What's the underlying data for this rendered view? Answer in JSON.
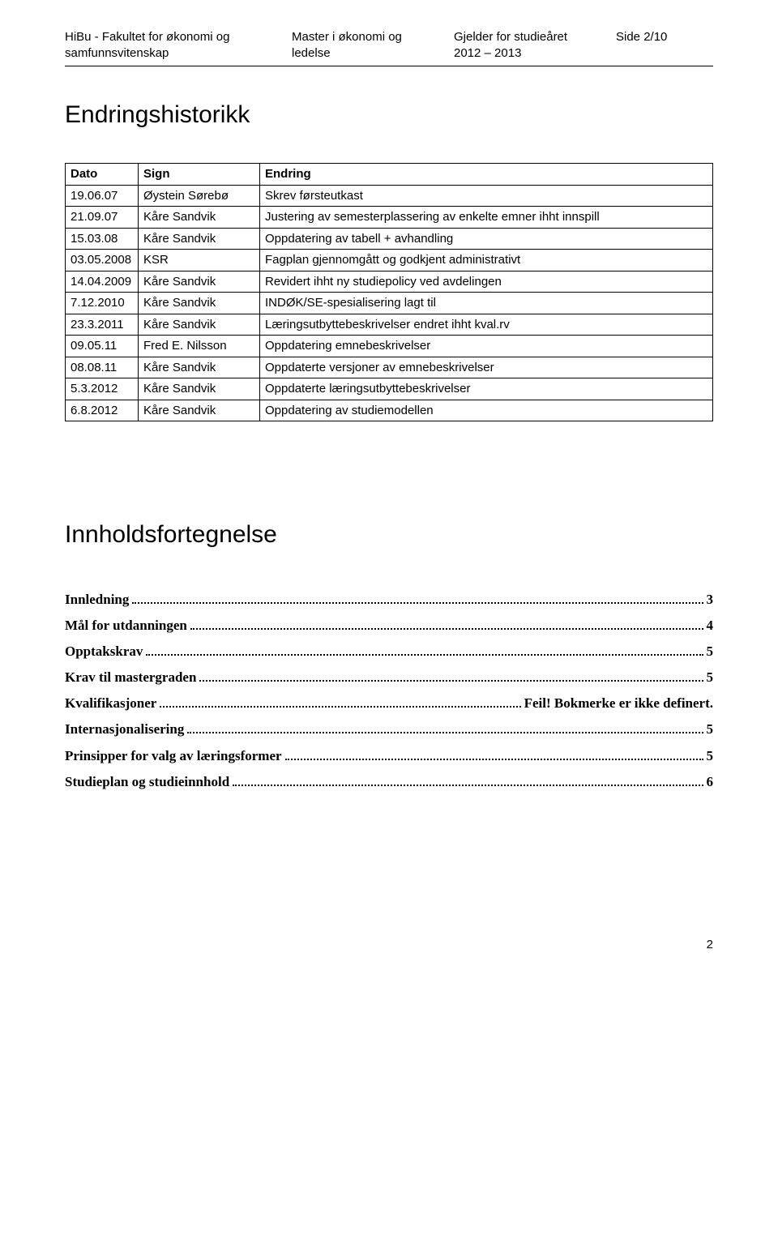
{
  "header": {
    "col1_line1": "HiBu - Fakultet for økonomi og",
    "col1_line2": "samfunnsvitenskap",
    "col2_line1": "Master i økonomi og",
    "col2_line2": "ledelse",
    "col3_line1": "Gjelder for studieåret",
    "col3_line2": "2012 – 2013",
    "col4_line1": "Side 2/10"
  },
  "title": "Endringshistorikk",
  "table": {
    "headers": [
      "Dato",
      "Sign",
      "Endring"
    ],
    "rows": [
      [
        "19.06.07",
        "Øystein Sørebø",
        "Skrev førsteutkast"
      ],
      [
        "21.09.07",
        "Kåre Sandvik",
        "Justering av semesterplassering av enkelte emner ihht innspill"
      ],
      [
        "15.03.08",
        "Kåre Sandvik",
        "Oppdatering av tabell + avhandling"
      ],
      [
        "03.05.2008",
        "KSR",
        "Fagplan gjennomgått og godkjent administrativt"
      ],
      [
        "14.04.2009",
        "Kåre Sandvik",
        "Revidert ihht ny studiepolicy ved avdelingen"
      ],
      [
        "7.12.2010",
        "Kåre Sandvik",
        "INDØK/SE-spesialisering lagt til"
      ],
      [
        "23.3.2011",
        "Kåre Sandvik",
        "Læringsutbyttebeskrivelser endret ihht kval.rv"
      ],
      [
        "09.05.11",
        "Fred E. Nilsson",
        "Oppdatering emnebeskrivelser"
      ],
      [
        "08.08.11",
        "Kåre Sandvik",
        "Oppdaterte versjoner av emnebeskrivelser"
      ],
      [
        "5.3.2012",
        "Kåre Sandvik",
        "Oppdaterte læringsutbyttebeskrivelser"
      ],
      [
        "6.8.2012",
        "Kåre Sandvik",
        "Oppdatering av studiemodellen"
      ]
    ]
  },
  "toc_title": "Innholdsfortegnelse",
  "toc": [
    {
      "label": "Innledning",
      "page": "3"
    },
    {
      "label": "Mål for utdanningen",
      "page": "4"
    },
    {
      "label": "Opptakskrav",
      "page": "5"
    },
    {
      "label": "Krav til mastergraden",
      "page": "5"
    },
    {
      "label": "Kvalifikasjoner",
      "page": "Feil! Bokmerke er ikke definert."
    },
    {
      "label": "Internasjonalisering",
      "page": "5"
    },
    {
      "label": "Prinsipper for valg av læringsformer",
      "page": "5"
    },
    {
      "label": "Studieplan og studieinnhold",
      "page": "6"
    }
  ],
  "page_number": "2"
}
